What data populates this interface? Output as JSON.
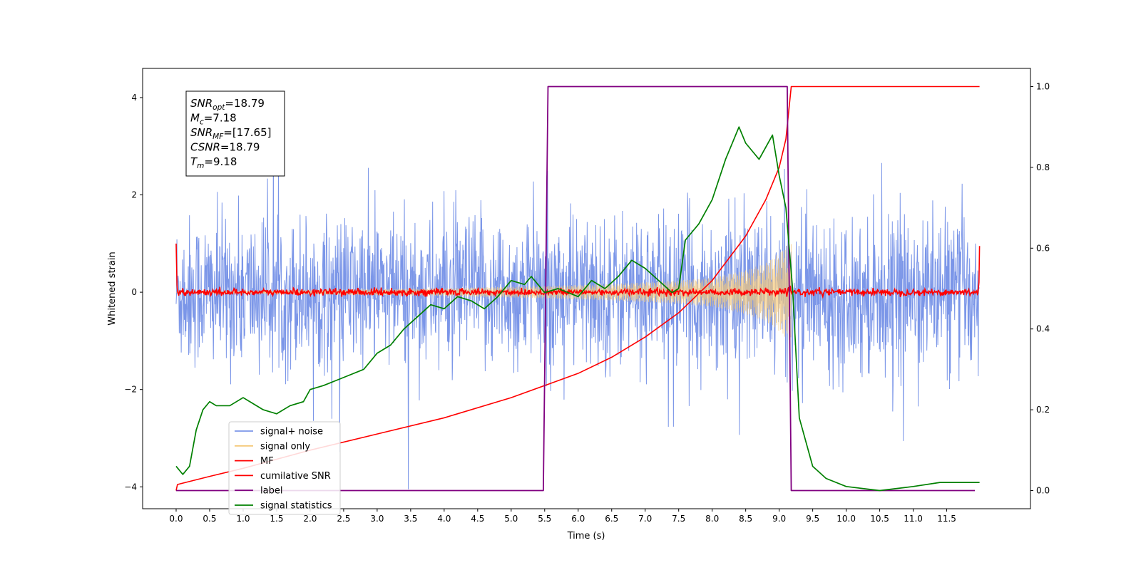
{
  "chart_data": {
    "type": "line",
    "xlabel": "Time (s)",
    "ylabel_left": "Whitened strain",
    "ylabel_right": "",
    "xlim": [
      -0.5,
      12.75
    ],
    "ylim_left": [
      -4.45,
      4.6
    ],
    "ylim_right": [
      -0.045,
      1.045
    ],
    "x_ticks": [
      0.0,
      0.5,
      1.0,
      1.5,
      2.0,
      2.5,
      3.0,
      3.5,
      4.0,
      4.5,
      5.0,
      5.5,
      6.0,
      6.5,
      7.0,
      7.5,
      8.0,
      8.5,
      9.0,
      9.5,
      10.0,
      10.5,
      11.0,
      11.5
    ],
    "x_tick_labels": [
      "0.0",
      "0.5",
      "1.0",
      "1.5",
      "2.0",
      "2.5",
      "3.0",
      "3.5",
      "4.0",
      "4.5",
      "5.0",
      "5.5",
      "6.0",
      "6.5",
      "7.0",
      "7.5",
      "8.0",
      "8.5",
      "9.0",
      "9.5",
      "10.0",
      "10.5",
      "11.0",
      "11.5"
    ],
    "y_left_ticks": [
      -4,
      -2,
      0,
      2,
      4
    ],
    "y_left_tick_labels": [
      "−4",
      "−2",
      "0",
      "2",
      "4"
    ],
    "y_right_ticks": [
      0.0,
      0.2,
      0.4,
      0.6,
      0.8,
      1.0
    ],
    "y_right_tick_labels": [
      "0.0",
      "0.2",
      "0.4",
      "0.6",
      "0.8",
      "1.0"
    ],
    "grid": false,
    "legend_position": "lower-left",
    "annotation": {
      "lines": [
        {
          "main": "SNR",
          "sub": "opt",
          "rest": "=18.79"
        },
        {
          "main": "M",
          "sub": "c",
          "rest": "=7.18"
        },
        {
          "main": "SNR",
          "sub": "MF",
          "rest": "=[17.65]"
        },
        {
          "main": "CSNR",
          "sub": "",
          "rest": "=18.79"
        },
        {
          "main": "T",
          "sub": "m",
          "rest": "=9.18"
        }
      ]
    },
    "series": [
      {
        "name": "signal+ noise",
        "color": "#7b96e8",
        "axis": "left",
        "kind": "noise",
        "x_range": [
          0.0,
          11.99
        ],
        "typical_range": [
          -1.3,
          1.3
        ],
        "extreme_range": [
          -4.05,
          4.2
        ]
      },
      {
        "name": "signal only",
        "color": "#f5c97a",
        "axis": "left",
        "kind": "chirp",
        "x_range": [
          0.0,
          9.18
        ],
        "envelope": {
          "x": [
            0.0,
            2.0,
            4.0,
            5.5,
            6.5,
            7.5,
            8.0,
            8.5,
            8.8,
            9.0,
            9.1,
            9.18
          ],
          "amp": [
            0.0,
            0.05,
            0.08,
            0.13,
            0.17,
            0.24,
            0.3,
            0.45,
            0.6,
            0.8,
            0.95,
            1.0
          ]
        }
      },
      {
        "name": "MF",
        "color": "#ff0000",
        "axis": "left",
        "kind": "noise-small",
        "x_range": [
          0.0,
          11.99
        ],
        "typical_range": [
          -0.07,
          0.07
        ],
        "edge_values": [
          1.0,
          0.95
        ]
      },
      {
        "name": "cumilative SNR",
        "color": "#ff0000",
        "axis": "right",
        "x": [
          0.0,
          0.02,
          0.5,
          1.0,
          2.0,
          3.0,
          4.0,
          5.0,
          5.5,
          6.0,
          6.5,
          7.0,
          7.5,
          8.0,
          8.5,
          8.8,
          9.0,
          9.1,
          9.18,
          11.99
        ],
        "y": [
          0.0,
          0.015,
          0.035,
          0.055,
          0.1,
          0.14,
          0.18,
          0.23,
          0.26,
          0.29,
          0.33,
          0.38,
          0.44,
          0.52,
          0.63,
          0.72,
          0.8,
          0.87,
          1.0,
          1.0
        ]
      },
      {
        "name": "label",
        "color": "#800080",
        "axis": "right",
        "x": [
          0.0,
          5.48,
          5.55,
          9.12,
          9.18,
          11.92
        ],
        "y": [
          0.0,
          0.0,
          1.0,
          1.0,
          0.0,
          0.0
        ]
      },
      {
        "name": "signal statistics",
        "color": "#008000",
        "axis": "right",
        "x": [
          0.0,
          0.1,
          0.2,
          0.3,
          0.4,
          0.5,
          0.6,
          0.8,
          1.0,
          1.1,
          1.3,
          1.5,
          1.7,
          1.9,
          2.0,
          2.2,
          2.5,
          2.8,
          3.0,
          3.2,
          3.4,
          3.6,
          3.8,
          4.0,
          4.2,
          4.4,
          4.6,
          4.8,
          5.0,
          5.2,
          5.3,
          5.5,
          5.7,
          6.0,
          6.2,
          6.4,
          6.6,
          6.8,
          7.0,
          7.2,
          7.4,
          7.5,
          7.6,
          7.7,
          7.8,
          8.0,
          8.2,
          8.3,
          8.4,
          8.5,
          8.6,
          8.7,
          8.9,
          9.0,
          9.1,
          9.2,
          9.3,
          9.5,
          9.7,
          10.0,
          10.5,
          11.0,
          11.4,
          11.6,
          11.8,
          11.99
        ],
        "y": [
          0.06,
          0.04,
          0.06,
          0.15,
          0.2,
          0.22,
          0.21,
          0.21,
          0.23,
          0.22,
          0.2,
          0.19,
          0.21,
          0.22,
          0.25,
          0.26,
          0.28,
          0.3,
          0.34,
          0.36,
          0.4,
          0.43,
          0.46,
          0.45,
          0.48,
          0.47,
          0.45,
          0.48,
          0.52,
          0.51,
          0.53,
          0.49,
          0.5,
          0.48,
          0.52,
          0.5,
          0.53,
          0.57,
          0.55,
          0.52,
          0.49,
          0.5,
          0.62,
          0.64,
          0.66,
          0.72,
          0.82,
          0.86,
          0.9,
          0.86,
          0.84,
          0.82,
          0.88,
          0.78,
          0.7,
          0.5,
          0.18,
          0.06,
          0.03,
          0.01,
          0.0,
          0.01,
          0.02,
          0.02,
          0.02,
          0.02
        ]
      }
    ]
  }
}
